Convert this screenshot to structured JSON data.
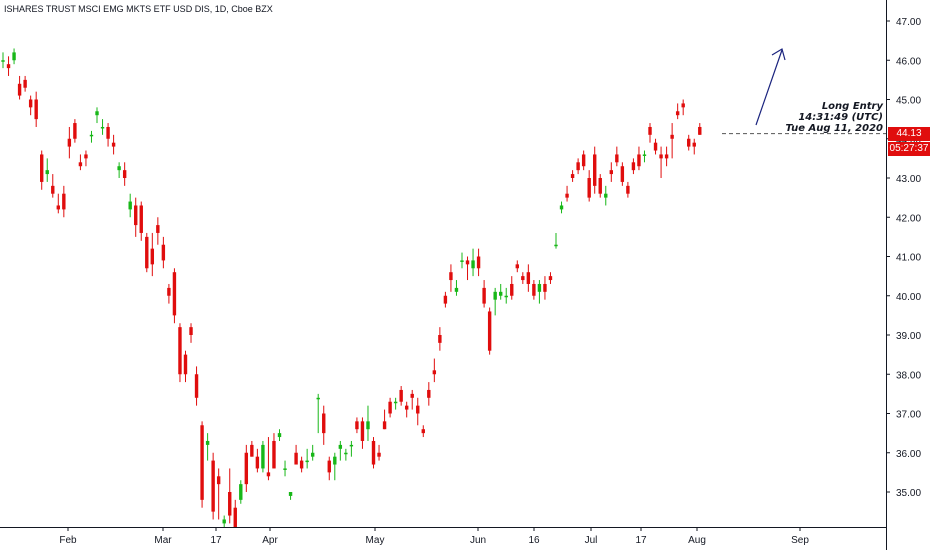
{
  "header": {
    "title": "ISHARES TRUST MSCI EMG MKTS ETF USD DIS, 1D, Cboe BZX"
  },
  "price_axis": {
    "ticks": [
      "47.00",
      "46.00",
      "45.00",
      "44.00",
      "43.00",
      "42.00",
      "41.00",
      "40.00",
      "39.00",
      "38.00",
      "37.00",
      "36.00",
      "35.00"
    ],
    "last_price": "44.13",
    "countdown": "05:27:37"
  },
  "time_axis": {
    "labels": [
      "Feb",
      "Mar",
      "17",
      "Apr",
      "May",
      "Jun",
      "16",
      "Jul",
      "17",
      "Aug",
      "Sep"
    ]
  },
  "annotation": {
    "line1": "Long Entry",
    "line2": "14:31:49 (UTC)",
    "line3": "Tue Aug 11, 2020"
  },
  "colors": {
    "up": "#18b718",
    "down": "#e00d0d",
    "arrow": "#1a237e",
    "price_tag": "#e00d0d"
  },
  "chart_data": {
    "type": "candlestick",
    "title": "ISHARES TRUST MSCI EMG MKTS ETF USD DIS, 1D, Cboe BZX",
    "ylim": [
      34.1,
      47.3
    ],
    "y_ticks": [
      35,
      36,
      37,
      38,
      39,
      40,
      41,
      42,
      43,
      44,
      45,
      46,
      47
    ],
    "x_ticks": [
      "Feb",
      "Mar",
      "17",
      "Apr",
      "May",
      "Jun",
      "16",
      "Jul",
      "17",
      "Aug",
      "Sep"
    ],
    "last_price": 44.13,
    "ohlc": [
      [
        46.0,
        46.2,
        45.8,
        46.0
      ],
      [
        45.9,
        46.1,
        45.6,
        45.8
      ],
      [
        46.0,
        46.3,
        45.9,
        46.2
      ],
      [
        45.4,
        45.6,
        45.0,
        45.1
      ],
      [
        45.5,
        45.6,
        45.2,
        45.3
      ],
      [
        45.0,
        45.1,
        44.6,
        44.8
      ],
      [
        45.0,
        45.2,
        44.3,
        44.5
      ],
      [
        43.6,
        43.7,
        42.7,
        42.9
      ],
      [
        43.1,
        43.5,
        42.9,
        43.2
      ],
      [
        42.8,
        43.1,
        42.5,
        42.6
      ],
      [
        42.3,
        42.6,
        42.1,
        42.2
      ],
      [
        42.6,
        42.8,
        42.0,
        42.2
      ],
      [
        44.0,
        44.3,
        43.5,
        43.8
      ],
      [
        44.4,
        44.5,
        43.9,
        44.0
      ],
      [
        43.4,
        43.6,
        43.2,
        43.3
      ],
      [
        43.6,
        43.7,
        43.3,
        43.5
      ],
      [
        44.1,
        44.2,
        43.9,
        44.1
      ],
      [
        44.6,
        44.8,
        44.4,
        44.7
      ],
      [
        44.3,
        44.5,
        44.1,
        44.3
      ],
      [
        44.3,
        44.4,
        43.8,
        44.0
      ],
      [
        43.9,
        44.1,
        43.6,
        43.8
      ],
      [
        43.2,
        43.4,
        43.0,
        43.3
      ],
      [
        43.2,
        43.4,
        42.8,
        43.0
      ],
      [
        42.2,
        42.6,
        42.0,
        42.4
      ],
      [
        42.3,
        42.5,
        41.5,
        41.8
      ],
      [
        42.3,
        42.4,
        41.4,
        41.6
      ],
      [
        41.5,
        41.6,
        40.6,
        40.7
      ],
      [
        41.2,
        41.6,
        40.5,
        40.8
      ],
      [
        41.8,
        42.0,
        41.3,
        41.6
      ],
      [
        41.3,
        41.5,
        40.7,
        40.9
      ],
      [
        40.2,
        40.3,
        39.8,
        40.0
      ],
      [
        40.6,
        40.7,
        39.3,
        39.5
      ],
      [
        39.2,
        39.3,
        37.8,
        38.0
      ],
      [
        38.5,
        38.6,
        37.8,
        38.0
      ],
      [
        39.2,
        39.3,
        38.8,
        39.0
      ],
      [
        38.0,
        38.2,
        37.2,
        37.4
      ],
      [
        36.7,
        36.8,
        34.6,
        34.8
      ],
      [
        36.2,
        36.5,
        35.8,
        36.3
      ],
      [
        35.8,
        36.0,
        34.3,
        34.5
      ],
      [
        35.4,
        35.6,
        34.3,
        35.2
      ],
      [
        34.2,
        34.4,
        34.0,
        34.3
      ],
      [
        35.0,
        35.6,
        34.2,
        34.4
      ],
      [
        34.6,
        34.8,
        33.8,
        34.0
      ],
      [
        34.8,
        35.3,
        34.7,
        35.2
      ],
      [
        36.0,
        36.2,
        35.0,
        35.2
      ],
      [
        36.2,
        36.3,
        35.9,
        35.9
      ],
      [
        35.9,
        36.1,
        35.5,
        35.6
      ],
      [
        35.6,
        36.3,
        35.5,
        36.2
      ],
      [
        35.5,
        36.4,
        35.3,
        35.4
      ],
      [
        36.3,
        36.5,
        35.6,
        35.6
      ],
      [
        36.4,
        36.6,
        36.3,
        36.5
      ],
      [
        35.6,
        35.8,
        35.4,
        35.6
      ],
      [
        34.9,
        35.0,
        34.8,
        35.0
      ],
      [
        36.0,
        36.2,
        35.7,
        35.7
      ],
      [
        35.8,
        35.9,
        35.5,
        35.6
      ],
      [
        35.8,
        36.1,
        35.6,
        35.8
      ],
      [
        35.9,
        36.2,
        35.8,
        36.0
      ],
      [
        37.4,
        37.5,
        36.5,
        37.4
      ],
      [
        37.0,
        37.2,
        36.2,
        36.5
      ],
      [
        35.8,
        35.9,
        35.3,
        35.5
      ],
      [
        35.7,
        36.0,
        35.3,
        35.9
      ],
      [
        36.1,
        36.3,
        35.8,
        36.2
      ],
      [
        36.0,
        36.1,
        35.8,
        36.0
      ],
      [
        36.2,
        36.3,
        35.9,
        36.2
      ],
      [
        36.8,
        36.9,
        36.5,
        36.6
      ],
      [
        36.8,
        36.9,
        36.1,
        36.3
      ],
      [
        36.6,
        37.2,
        36.3,
        36.8
      ],
      [
        36.3,
        36.4,
        35.6,
        35.7
      ],
      [
        36.0,
        36.2,
        35.8,
        35.9
      ],
      [
        36.8,
        37.1,
        36.6,
        36.6
      ],
      [
        37.3,
        37.4,
        36.9,
        37.0
      ],
      [
        37.3,
        37.4,
        37.1,
        37.3
      ],
      [
        37.6,
        37.7,
        37.2,
        37.3
      ],
      [
        37.2,
        37.3,
        36.9,
        37.1
      ],
      [
        37.5,
        37.6,
        37.1,
        37.4
      ],
      [
        37.2,
        37.4,
        36.7,
        37.0
      ],
      [
        36.6,
        36.7,
        36.4,
        36.5
      ],
      [
        37.6,
        37.8,
        37.2,
        37.4
      ],
      [
        38.1,
        38.4,
        37.8,
        38.0
      ],
      [
        39.0,
        39.2,
        38.6,
        38.8
      ],
      [
        40.0,
        40.1,
        39.7,
        39.8
      ],
      [
        40.6,
        40.8,
        40.1,
        40.4
      ],
      [
        40.1,
        40.4,
        40.0,
        40.2
      ],
      [
        40.9,
        41.1,
        40.7,
        40.9
      ],
      [
        40.9,
        41.0,
        40.4,
        40.8
      ],
      [
        40.7,
        41.2,
        40.5,
        40.9
      ],
      [
        41.0,
        41.2,
        40.5,
        40.7
      ],
      [
        40.2,
        40.4,
        39.7,
        39.8
      ],
      [
        39.6,
        39.7,
        38.5,
        38.6
      ],
      [
        39.9,
        40.2,
        39.5,
        40.1
      ],
      [
        40.0,
        40.3,
        39.9,
        40.1
      ],
      [
        40.0,
        40.2,
        39.8,
        40.0
      ],
      [
        40.3,
        40.5,
        39.9,
        40.0
      ],
      [
        40.8,
        40.9,
        40.6,
        40.7
      ],
      [
        40.5,
        40.6,
        40.3,
        40.4
      ],
      [
        40.6,
        40.8,
        40.1,
        40.3
      ],
      [
        40.3,
        40.4,
        39.9,
        40.0
      ],
      [
        40.1,
        40.4,
        39.8,
        40.3
      ],
      [
        40.3,
        40.5,
        39.9,
        40.1
      ],
      [
        40.5,
        40.6,
        40.3,
        40.4
      ],
      [
        41.3,
        41.6,
        41.2,
        41.3
      ],
      [
        42.2,
        42.4,
        42.1,
        42.3
      ],
      [
        42.6,
        42.8,
        42.4,
        42.5
      ],
      [
        43.1,
        43.2,
        42.9,
        43.0
      ],
      [
        43.4,
        43.5,
        43.1,
        43.2
      ],
      [
        43.6,
        43.7,
        43.2,
        43.3
      ],
      [
        43.0,
        43.2,
        42.4,
        42.5
      ],
      [
        43.6,
        43.8,
        42.6,
        42.8
      ],
      [
        43.0,
        43.1,
        42.5,
        42.6
      ],
      [
        42.5,
        42.8,
        42.3,
        42.6
      ],
      [
        43.2,
        43.4,
        42.9,
        43.1
      ],
      [
        43.6,
        43.8,
        43.3,
        43.4
      ],
      [
        43.3,
        43.4,
        42.8,
        42.9
      ],
      [
        42.8,
        42.9,
        42.5,
        42.6
      ],
      [
        43.4,
        43.5,
        43.1,
        43.2
      ],
      [
        43.6,
        43.8,
        43.2,
        43.3
      ],
      [
        43.6,
        43.7,
        43.4,
        43.6
      ],
      [
        44.3,
        44.4,
        43.9,
        44.1
      ],
      [
        43.9,
        44.0,
        43.6,
        43.7
      ],
      [
        43.6,
        43.8,
        43.0,
        43.5
      ],
      [
        43.6,
        43.8,
        43.3,
        43.5
      ],
      [
        44.1,
        44.4,
        43.5,
        44.0
      ],
      [
        44.7,
        44.9,
        44.5,
        44.6
      ],
      [
        44.9,
        45.0,
        44.6,
        44.8
      ],
      [
        44.0,
        44.1,
        43.7,
        43.8
      ],
      [
        43.9,
        44.0,
        43.6,
        43.8
      ],
      [
        44.3,
        44.4,
        44.1,
        44.1
      ]
    ],
    "annotation": {
      "text": [
        "Long Entry",
        "14:31:49 (UTC)",
        "Tue Aug 11, 2020"
      ],
      "price": 44.13
    }
  }
}
